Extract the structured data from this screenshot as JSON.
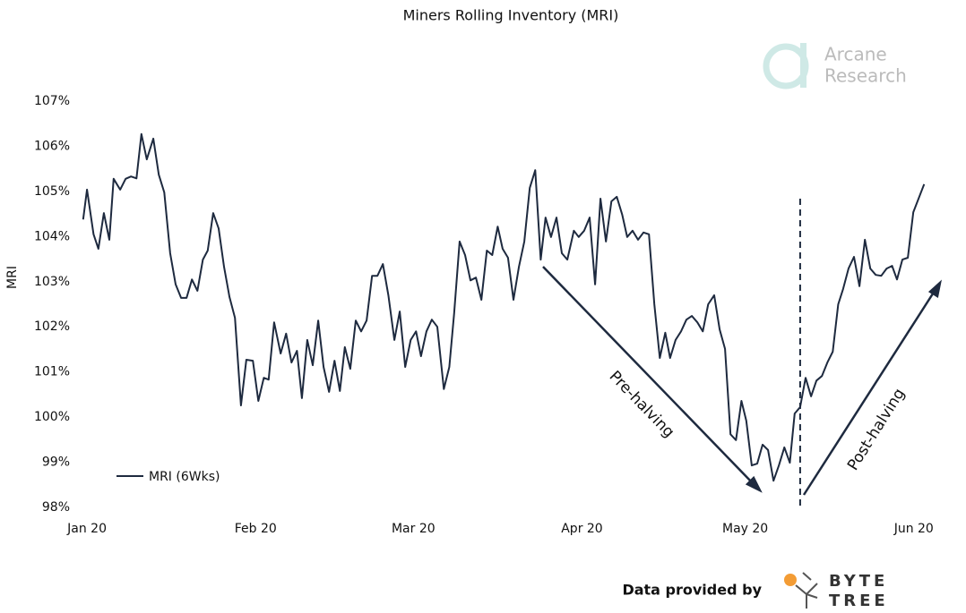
{
  "chart_data": {
    "type": "line",
    "title": "Miners Rolling Inventory (MRI)",
    "y_label": "MRI",
    "xlim": [
      -1,
      155
    ],
    "xticks": [
      {
        "value": 0,
        "label": "Jan 20"
      },
      {
        "value": 31,
        "label": "Feb 20"
      },
      {
        "value": 60,
        "label": "Mar 20"
      },
      {
        "value": 91,
        "label": "Apr 20"
      },
      {
        "value": 121,
        "label": "May 20"
      },
      {
        "value": 152,
        "label": "Jun 20"
      }
    ],
    "ylim": [
      98,
      107
    ],
    "yticks": [
      {
        "value": 98,
        "label": "98%"
      },
      {
        "value": 99,
        "label": "99%"
      },
      {
        "value": 100,
        "label": "100%"
      },
      {
        "value": 101,
        "label": "101%"
      },
      {
        "value": 102,
        "label": "102%"
      },
      {
        "value": 103,
        "label": "103%"
      },
      {
        "value": 104,
        "label": "104%"
      },
      {
        "value": 105,
        "label": "105%"
      },
      {
        "value": 106,
        "label": "106%"
      },
      {
        "value": 107,
        "label": "107%"
      }
    ],
    "x": [
      -0.7,
      0,
      1.2,
      2.1,
      3.1,
      4.1,
      4.9,
      6.1,
      7.1,
      8.1,
      9.1,
      10.0,
      11.0,
      12.2,
      13.2,
      14.2,
      15.3,
      16.3,
      17.3,
      18.3,
      19.3,
      20.3,
      21.3,
      22.2,
      23.2,
      24.2,
      25.2,
      26.2,
      27.2,
      28.3,
      29.3,
      30.5,
      31.5,
      32.5,
      33.4,
      34.4,
      35.6,
      36.6,
      37.6,
      38.6,
      39.5,
      40.5,
      41.5,
      42.5,
      43.5,
      44.5,
      45.5,
      46.5,
      47.4,
      48.4,
      49.4,
      50.4,
      51.4,
      52.4,
      53.4,
      54.4,
      55.4,
      56.5,
      57.5,
      58.5,
      59.5,
      60.5,
      61.4,
      62.4,
      63.4,
      64.4,
      65.6,
      66.6,
      67.5,
      68.5,
      69.5,
      70.5,
      71.5,
      72.5,
      73.5,
      74.5,
      75.5,
      76.4,
      77.4,
      78.4,
      79.4,
      80.4,
      81.4,
      82.4,
      83.4,
      84.3,
      85.3,
      86.3,
      87.3,
      88.3,
      89.5,
      90.4,
      91.4,
      92.4,
      93.4,
      94.4,
      95.4,
      96.4,
      97.4,
      98.4,
      99.3,
      100.3,
      101.3,
      102.3,
      103.3,
      104.3,
      105.3,
      106.3,
      107.2,
      108.2,
      109.2,
      110.2,
      111.2,
      112.2,
      113.2,
      114.2,
      115.3,
      116.3,
      117.3,
      118.3,
      119.3,
      120.3,
      121.2,
      122.2,
      123.2,
      124.2,
      125.2,
      126.2,
      127.2,
      128.2,
      129.2,
      130.1,
      131.1,
      132.1,
      133.1,
      134.1,
      135.1,
      136.1,
      137.1,
      138.1,
      139.0,
      140.0,
      141.0,
      142.0,
      143.0,
      144.0,
      145.0,
      146.0,
      147.0,
      148.0,
      148.9,
      149.9,
      150.9,
      151.9,
      153.9
    ],
    "series": [
      {
        "name": "MRI (6Wks)",
        "color": "#1e2a3f",
        "values": [
          104.38,
          105.04,
          104.05,
          103.73,
          104.52,
          103.93,
          105.28,
          105.04,
          105.28,
          105.33,
          105.29,
          106.27,
          105.71,
          106.17,
          105.37,
          104.98,
          103.63,
          102.94,
          102.64,
          102.64,
          103.05,
          102.8,
          103.49,
          103.69,
          104.52,
          104.18,
          103.33,
          102.66,
          102.2,
          100.26,
          101.27,
          101.25,
          100.36,
          100.87,
          100.83,
          102.1,
          101.41,
          101.85,
          101.21,
          101.47,
          100.42,
          101.71,
          101.15,
          102.14,
          101.11,
          100.56,
          101.25,
          100.58,
          101.55,
          101.07,
          102.14,
          101.9,
          102.14,
          103.13,
          103.13,
          103.39,
          102.7,
          101.71,
          102.34,
          101.11,
          101.71,
          101.9,
          101.35,
          101.9,
          102.16,
          102.0,
          100.62,
          101.11,
          102.3,
          103.89,
          103.59,
          103.03,
          103.09,
          102.6,
          103.69,
          103.59,
          104.22,
          103.73,
          103.53,
          102.6,
          103.33,
          103.89,
          105.08,
          105.47,
          103.49,
          104.42,
          103.99,
          104.42,
          103.63,
          103.49,
          104.13,
          103.99,
          104.13,
          104.42,
          102.94,
          104.84,
          103.89,
          104.78,
          104.88,
          104.48,
          103.99,
          104.13,
          103.93,
          104.09,
          104.05,
          102.5,
          101.31,
          101.87,
          101.31,
          101.71,
          101.9,
          102.16,
          102.24,
          102.1,
          101.9,
          102.5,
          102.7,
          101.94,
          101.51,
          99.62,
          99.49,
          100.36,
          99.92,
          98.93,
          98.97,
          99.39,
          99.27,
          98.59,
          98.93,
          99.33,
          98.99,
          100.08,
          100.22,
          100.87,
          100.46,
          100.81,
          100.91,
          101.21,
          101.45,
          102.5,
          102.84,
          103.29,
          103.55,
          102.9,
          103.93,
          103.29,
          103.15,
          103.13,
          103.29,
          103.35,
          103.05,
          103.49,
          103.53,
          104.54,
          105.16
        ]
      }
    ],
    "vline": 131.1,
    "annotations": [
      "Pre-halving",
      "Post-halving"
    ],
    "grid": false
  },
  "branding": {
    "watermark": [
      "Arcane",
      "Research"
    ],
    "credit": "Data provided by",
    "logo": [
      "BYTE",
      "TREE"
    ]
  }
}
